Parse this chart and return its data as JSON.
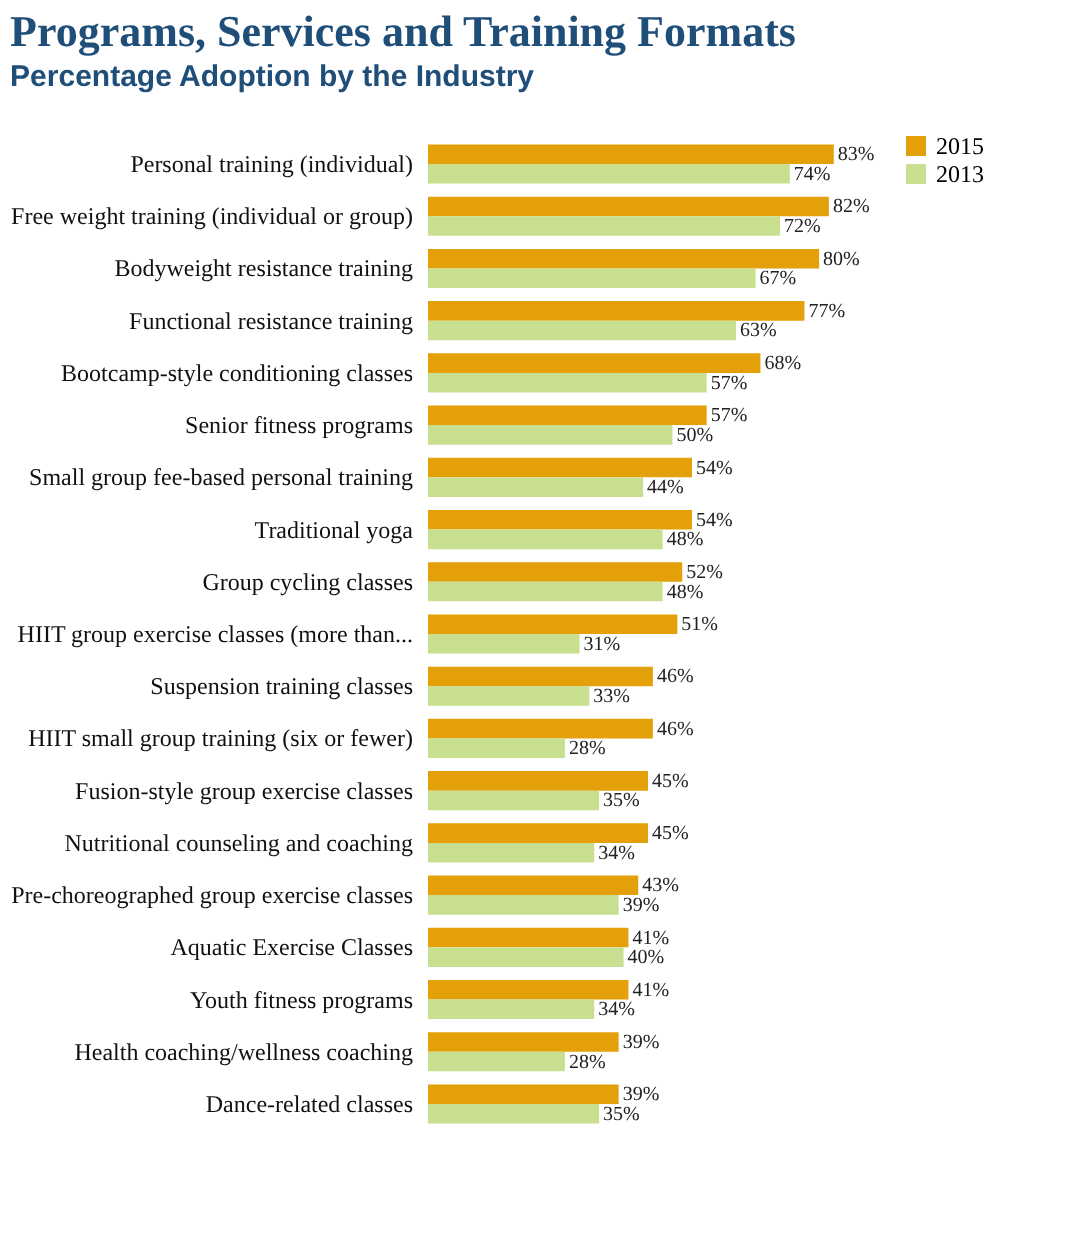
{
  "chart_data": {
    "type": "bar",
    "orientation": "horizontal",
    "title": "Programs, Services and Training Formats",
    "subtitle": "Percentage Adoption by the Industry",
    "categories": [
      "Personal training (individual)",
      "Free weight training (individual or group)",
      "Bodyweight resistance training",
      "Functional resistance training",
      "Bootcamp-style conditioning classes",
      "Senior fitness programs",
      "Small group fee-based personal training",
      "Traditional yoga",
      "Group cycling classes",
      "HIIT group exercise classes (more than...",
      "Suspension training classes",
      "HIIT small group training (six or fewer)",
      "Fusion-style group exercise classes",
      "Nutritional counseling and coaching",
      "Pre-choreographed group exercise classes",
      "Aquatic Exercise Classes",
      "Youth fitness programs",
      "Health coaching/wellness coaching",
      "Dance-related classes"
    ],
    "series": [
      {
        "name": "2015",
        "color": "#e3a008",
        "values": [
          83,
          82,
          80,
          77,
          68,
          57,
          54,
          54,
          52,
          51,
          46,
          46,
          45,
          45,
          43,
          41,
          41,
          39,
          39
        ],
        "value_labels": [
          "83%",
          "82%",
          "80%",
          "77%",
          "68%",
          "57%",
          "54%",
          "54%",
          "52%",
          "51%",
          "46%",
          "46%",
          "45%",
          "45%",
          "43%",
          "41%",
          "41%",
          "39%",
          "39%"
        ]
      },
      {
        "name": "2013",
        "color": "#c8df90",
        "values": [
          74,
          72,
          67,
          63,
          57,
          50,
          44,
          48,
          48,
          31,
          33,
          28,
          35,
          34,
          39,
          40,
          34,
          28,
          35
        ],
        "value_labels": [
          "74%",
          "72%",
          "67%",
          "63%",
          "57%",
          "50%",
          "44%",
          "48%",
          "48%",
          "31%",
          "33%",
          "28%",
          "35%",
          "34%",
          "39%",
          "40%",
          "34%",
          "28%",
          "35%"
        ]
      }
    ],
    "tick_labels": "y",
    "legend": "right"
  }
}
